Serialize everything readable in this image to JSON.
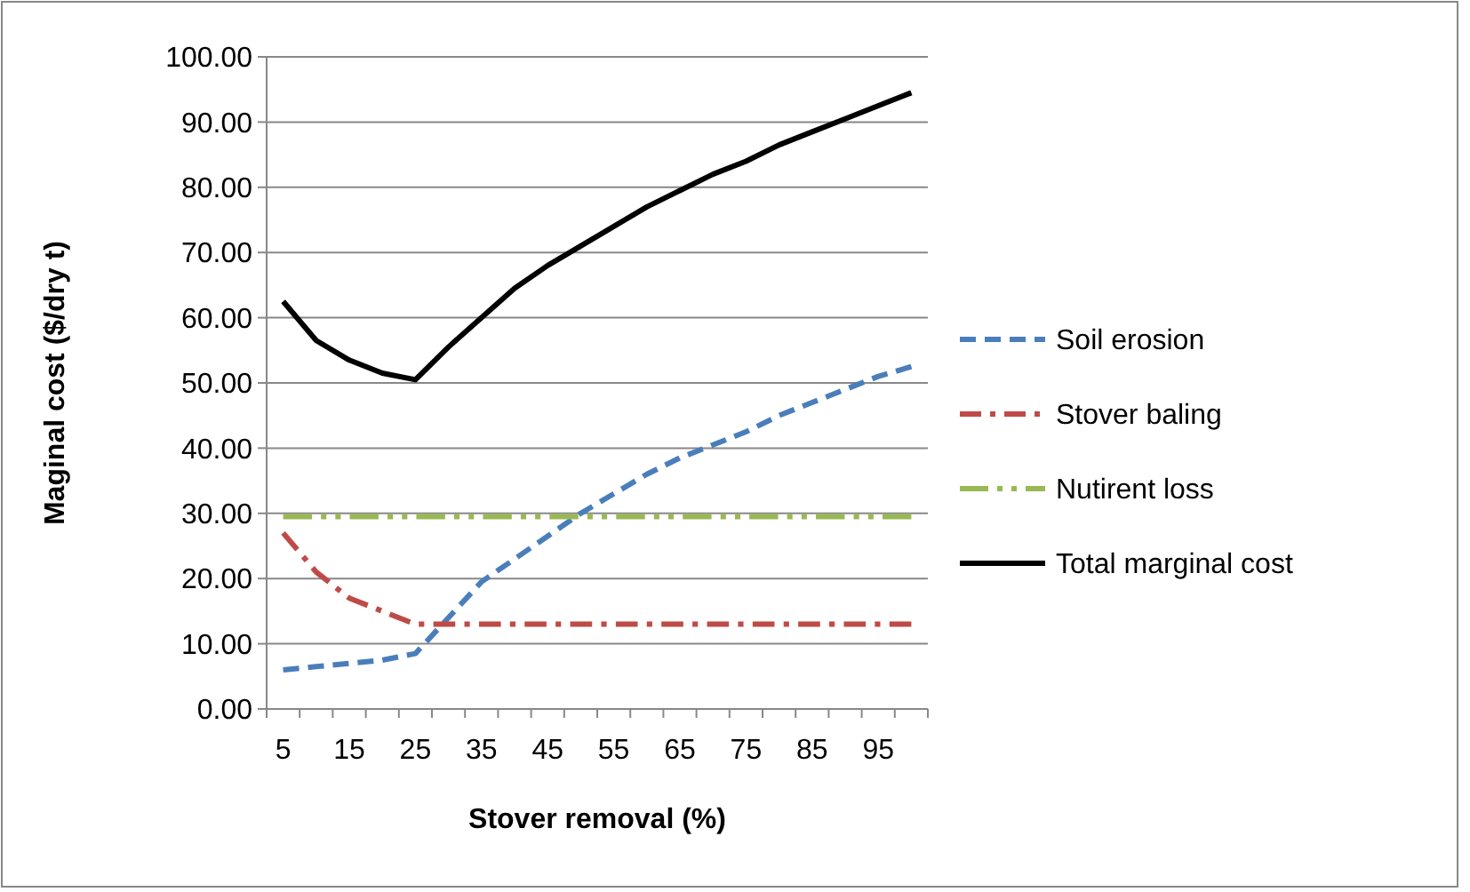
{
  "chart_data": {
    "type": "line",
    "xlabel": "Stover removal (%)",
    "ylabel": "Maginal cost ($/dry t)",
    "categories": [
      "5",
      null,
      "15",
      null,
      "25",
      null,
      "35",
      null,
      "45",
      null,
      "55",
      null,
      "65",
      null,
      "75",
      null,
      "85",
      null,
      "95",
      null
    ],
    "ylim": [
      0,
      100
    ],
    "yticks": [
      {
        "value": 0,
        "label": "0.00"
      },
      {
        "value": 10,
        "label": "10.00"
      },
      {
        "value": 20,
        "label": "20.00"
      },
      {
        "value": 30,
        "label": "30.00"
      },
      {
        "value": 40,
        "label": "40.00"
      },
      {
        "value": 50,
        "label": "50.00"
      },
      {
        "value": 60,
        "label": "60.00"
      },
      {
        "value": 70,
        "label": "70.00"
      },
      {
        "value": 80,
        "label": "80.00"
      },
      {
        "value": 90,
        "label": "90.00"
      },
      {
        "value": 100,
        "label": "100.00"
      }
    ],
    "grid": "y",
    "legend": "right",
    "series": [
      {
        "name": "Soil erosion",
        "color": "#4a7ebb",
        "line_style": "dashed",
        "values": [
          6,
          6.5,
          7,
          7.5,
          8.5,
          14,
          19.5,
          23,
          26.5,
          30,
          33,
          36,
          38.5,
          40.5,
          42.5,
          45,
          47,
          49,
          51,
          52.5
        ]
      },
      {
        "name": "Stover baling",
        "color": "#be4b48",
        "line_style": "dashdot",
        "values": [
          27,
          21,
          17,
          15,
          13,
          13,
          13,
          13,
          13,
          13,
          13,
          13,
          13,
          13,
          13,
          13,
          13,
          13,
          13,
          13
        ]
      },
      {
        "name": "Nutirent loss",
        "color": "#98b954",
        "line_style": "dashdotdot",
        "values": [
          29.5,
          29.5,
          29.5,
          29.5,
          29.5,
          29.5,
          29.5,
          29.5,
          29.5,
          29.5,
          29.5,
          29.5,
          29.5,
          29.5,
          29.5,
          29.5,
          29.5,
          29.5,
          29.5,
          29.5
        ]
      },
      {
        "name": "Total marginal cost",
        "color": "#000000",
        "line_style": "solid",
        "values": [
          62.5,
          56.5,
          53.5,
          51.5,
          50.5,
          55.5,
          60,
          64.5,
          68,
          71,
          74,
          77,
          79.5,
          82,
          84,
          86.5,
          88.5,
          90.5,
          92.5,
          94.5
        ]
      }
    ]
  }
}
